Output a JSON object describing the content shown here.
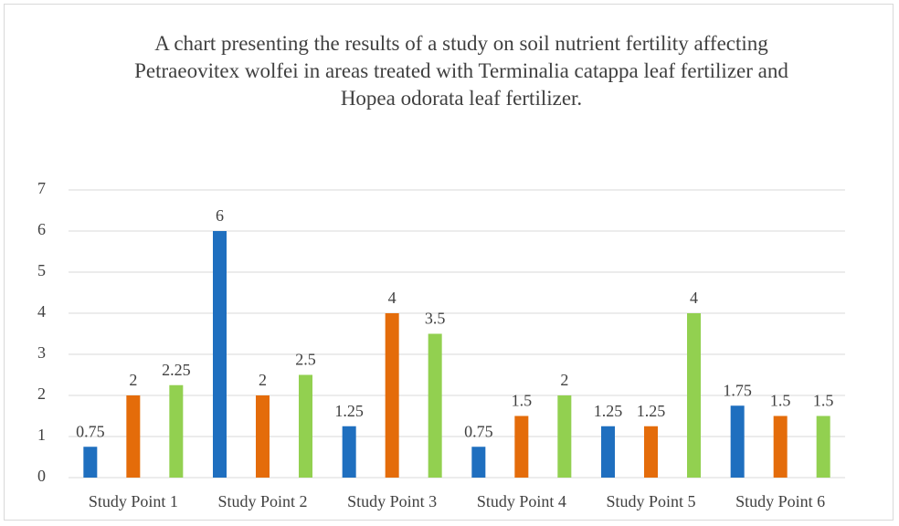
{
  "chart_data": {
    "type": "bar",
    "title": "A chart presenting the results of a study on soil nutrient fertility affecting Petraeovitex wolfei in areas treated with Terminalia catappa leaf fertilizer and Hopea odorata leaf fertilizer.",
    "categories": [
      "Study Point 1",
      "Study Point 2",
      "Study Point 3",
      "Study Point 4",
      "Study Point 5",
      "Study Point 6"
    ],
    "series": [
      {
        "color": "#1f6fbf",
        "values": [
          0.75,
          6,
          1.25,
          0.75,
          1.25,
          1.75
        ]
      },
      {
        "color": "#e46c0a",
        "values": [
          2,
          2,
          4,
          1.5,
          1.25,
          1.5
        ]
      },
      {
        "color": "#92d050",
        "values": [
          2.25,
          2.5,
          3.5,
          2,
          4,
          1.5
        ]
      }
    ],
    "ylim": [
      0,
      7
    ],
    "yticks": [
      0,
      1,
      2,
      3,
      4,
      5,
      6,
      7
    ],
    "grid": true
  }
}
